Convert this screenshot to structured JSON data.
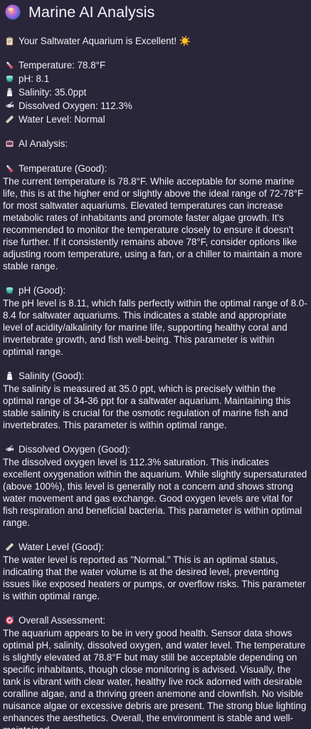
{
  "app": {
    "title": "Marine AI Analysis",
    "logo_icon": "orb-icon"
  },
  "summary": {
    "headline": "Your Saltwater Aquarium is Excellent! ☀️",
    "headline_icon": "clipboard-icon"
  },
  "readings": [
    {
      "icon": "thermometer-icon",
      "text": "Temperature: 78.8°F"
    },
    {
      "icon": "test-tube-icon",
      "text": "pH: 8.1"
    },
    {
      "icon": "salt-shaker-icon",
      "text": "Salinity: 35.0ppt"
    },
    {
      "icon": "bubble-icon",
      "text": "Dissolved Oxygen: 112.3%"
    },
    {
      "icon": "ruler-icon",
      "text": "Water Level: Normal"
    }
  ],
  "analysis": {
    "heading": "AI Analysis:",
    "heading_icon": "robot-icon",
    "sections": [
      {
        "icon": "thermometer-icon",
        "title": "Temperature (Good):",
        "body": "The current temperature is 78.8°F. While acceptable for some marine life, this is at the higher end or slightly above the ideal range of 72-78°F for most saltwater aquariums. Elevated temperatures can increase metabolic rates of inhabitants and promote faster algae growth. It's recommended to monitor the temperature closely to ensure it doesn't rise further. If it consistently remains above 78°F, consider options like adjusting room temperature, using a fan, or a chiller to maintain a more stable range."
      },
      {
        "icon": "test-tube-icon",
        "title": "pH (Good):",
        "body": "The pH level is 8.11, which falls perfectly within the optimal range of 8.0-8.4 for saltwater aquariums. This indicates a stable and appropriate level of acidity/alkalinity for marine life, supporting healthy coral and invertebrate growth, and fish well-being. This parameter is within optimal range."
      },
      {
        "icon": "salt-shaker-icon",
        "title": "Salinity (Good):",
        "body": "The salinity is measured at 35.0 ppt, which is precisely within the optimal range of 34-36 ppt for a saltwater aquarium. Maintaining this stable salinity is crucial for the osmotic regulation of marine fish and invertebrates. This parameter is within optimal range."
      },
      {
        "icon": "bubble-icon",
        "title": "Dissolved Oxygen (Good):",
        "body": "The dissolved oxygen level is 112.3% saturation. This indicates excellent oxygenation within the aquarium. While slightly supersaturated (above 100%), this level is generally not a concern and shows strong water movement and gas exchange. Good oxygen levels are vital for fish respiration and beneficial bacteria. This parameter is within optimal range."
      },
      {
        "icon": "ruler-icon",
        "title": "Water Level (Good):",
        "body": "The water level is reported as \"Normal.\" This is an optimal status, indicating that the water volume is at the desired level, preventing issues like exposed heaters or pumps, or overflow risks. This parameter is within optimal range."
      },
      {
        "icon": "target-icon",
        "title": "Overall Assessment:",
        "body": "The aquarium appears to be in very good health. Sensor data shows optimal pH, salinity, dissolved oxygen, and water level. The temperature is slightly elevated at 78.8°F but may still be acceptable depending on specific inhabitants, though close monitoring is advised. Visually, the tank is vibrant with clear water, healthy live rock adorned with desirable coralline algae, and a thriving green anemone and clownfish. No visible nuisance algae or excessive debris are present. The strong blue lighting enhances the aesthetics. Overall, the environment is stable and well-maintained."
      }
    ]
  }
}
